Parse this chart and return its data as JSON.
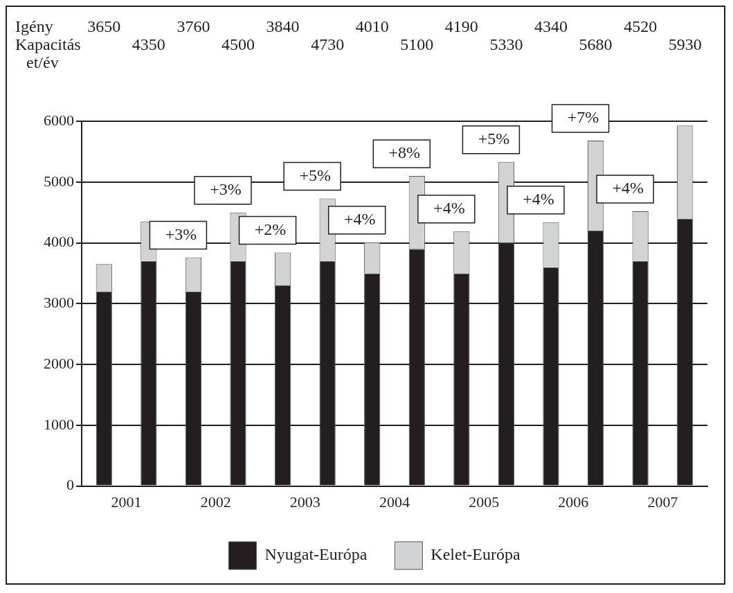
{
  "chart_data": {
    "type": "bar",
    "stacked": true,
    "ylabel": "et/év",
    "categories": [
      "2001",
      null,
      "2002",
      null,
      "2003",
      null,
      "2004",
      null,
      "2005",
      null,
      "2006",
      null,
      "2007",
      null
    ],
    "series": [
      {
        "name": "Nyugat-Európa",
        "color": "#231f20",
        "values": [
          3200,
          3700,
          3200,
          3700,
          3300,
          3700,
          3500,
          3900,
          3500,
          4000,
          3600,
          4200,
          3700,
          4400
        ]
      },
      {
        "name": "Kelet-Európa",
        "color": "#d1d3d4",
        "values": [
          450,
          650,
          560,
          800,
          540,
          1030,
          510,
          1200,
          690,
          1330,
          740,
          1480,
          820,
          1530
        ]
      }
    ],
    "annotations": [
      "Igény",
      "3650",
      "3760",
      "3840",
      "4010",
      "4190",
      "4340",
      "4520",
      "Kapacitás",
      "4350",
      "4500",
      "4730",
      "5100",
      "5330",
      "5680",
      "5930",
      "+3%",
      "+3%",
      "+2%",
      "+5%",
      "+4%",
      "+8%",
      "+4%",
      "+5%",
      "+4%",
      "+7%",
      "+4%"
    ],
    "ylim": [
      0,
      6000
    ],
    "yticks": [
      0,
      1000,
      2000,
      3000,
      4000,
      5000,
      6000
    ],
    "grid": "y",
    "legend": "bottom"
  }
}
